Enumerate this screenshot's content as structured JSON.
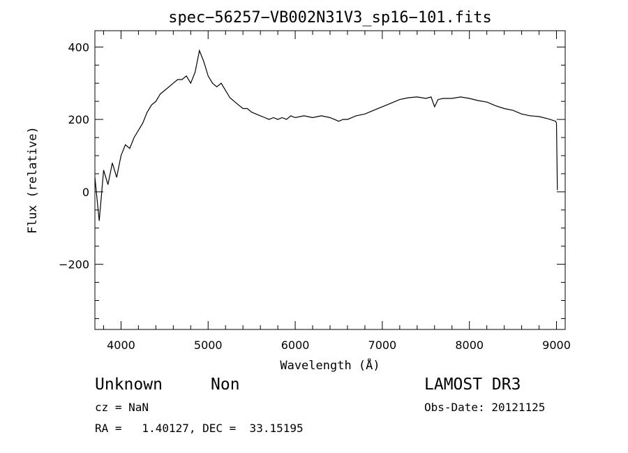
{
  "chart_data": {
    "type": "line",
    "title": "spec−56257−VB002N31V3_sp16−101.fits",
    "xlabel": "Wavelength (Å)",
    "ylabel": "Flux (relative)",
    "xlim": [
      3700,
      9100
    ],
    "ylim": [
      -380,
      445
    ],
    "x_ticks": [
      4000,
      5000,
      6000,
      7000,
      8000,
      9000
    ],
    "x_tick_labels": [
      "4000",
      "5000",
      "6000",
      "7000",
      "8000",
      "9000"
    ],
    "y_ticks": [
      -200,
      0,
      200,
      400
    ],
    "y_tick_labels": [
      "−200",
      "0",
      "200",
      "400"
    ],
    "grid": false,
    "series": [
      {
        "x": [
          3700,
          3750,
          3800,
          3850,
          3900,
          3950,
          4000,
          4050,
          4100,
          4150,
          4200,
          4250,
          4300,
          4350,
          4400,
          4450,
          4500,
          4550,
          4600,
          4650,
          4700,
          4750,
          4800,
          4850,
          4900,
          4950,
          5000,
          5050,
          5100,
          5150,
          5200,
          5250,
          5300,
          5350,
          5400,
          5450,
          5500,
          5550,
          5600,
          5650,
          5700,
          5750,
          5800,
          5850,
          5900,
          5950,
          6000,
          6100,
          6200,
          6300,
          6400,
          6500,
          6550,
          6600,
          6700,
          6800,
          6900,
          7000,
          7100,
          7200,
          7300,
          7400,
          7500,
          7560,
          7600,
          7640,
          7700,
          7800,
          7900,
          8000,
          8100,
          8200,
          8300,
          8400,
          8500,
          8600,
          8700,
          8800,
          8900,
          8950,
          8990,
          9000,
          9010
        ],
        "y": [
          40,
          -80,
          60,
          20,
          80,
          40,
          100,
          130,
          120,
          150,
          170,
          190,
          220,
          240,
          250,
          270,
          280,
          290,
          300,
          310,
          310,
          320,
          300,
          330,
          390,
          360,
          320,
          300,
          290,
          300,
          280,
          260,
          250,
          240,
          230,
          230,
          220,
          215,
          210,
          205,
          200,
          205,
          200,
          205,
          200,
          210,
          205,
          210,
          205,
          210,
          205,
          195,
          200,
          200,
          210,
          215,
          225,
          235,
          245,
          255,
          260,
          262,
          258,
          262,
          235,
          255,
          258,
          258,
          262,
          258,
          252,
          248,
          238,
          230,
          225,
          215,
          210,
          208,
          202,
          198,
          195,
          190,
          5
        ]
      }
    ]
  },
  "annotations": {
    "object_class": "Unknown",
    "object_subclass": "Non",
    "survey": "LAMOST DR3",
    "cz": "cz = NaN",
    "obs_date": "Obs-Date: 20121125",
    "coords": "RA =   1.40127, DEC =  33.15195"
  }
}
